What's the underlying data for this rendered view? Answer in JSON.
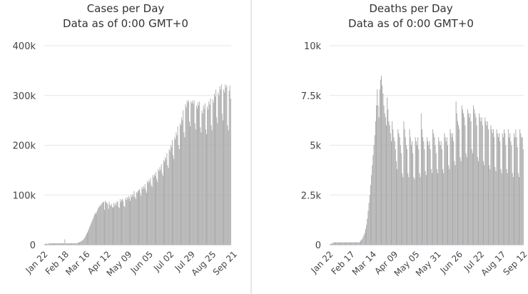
{
  "chart_data": [
    {
      "type": "bar",
      "title": "Cases per Day",
      "subtitle": "Data as of 0:00 GMT+0",
      "xlabel": "",
      "ylabel": "",
      "ylim": [
        0,
        400000
      ],
      "y_ticks": [
        0,
        100000,
        200000,
        300000,
        400000
      ],
      "y_tick_labels": [
        "0",
        "100k",
        "200k",
        "300k",
        "400k"
      ],
      "x_tick_labels": [
        "Jan 22",
        "Feb 18",
        "Mar 16",
        "Apr 12",
        "May 09",
        "Jun 05",
        "Jul 02",
        "Jul 29",
        "Aug 25",
        "Sep 21"
      ],
      "x_tick_index": [
        0,
        27,
        54,
        81,
        108,
        135,
        162,
        189,
        216,
        243
      ],
      "bar_color": "#a6a6a6",
      "n_days": 250,
      "start_date": "Jan 22",
      "values": [
        1000,
        2000,
        2000,
        2000,
        2000,
        2000,
        3000,
        3000,
        3000,
        3000,
        3000,
        3000,
        3000,
        3000,
        3000,
        3000,
        3000,
        3000,
        3000,
        3000,
        3000,
        3000,
        3000,
        3000,
        3000,
        3000,
        11000,
        3000,
        3000,
        3000,
        3000,
        3000,
        3000,
        3000,
        3000,
        3000,
        3000,
        3000,
        3000,
        3000,
        3000,
        3000,
        3000,
        4000,
        5000,
        5000,
        6000,
        7000,
        8000,
        9000,
        11000,
        13000,
        16000,
        19000,
        22000,
        25000,
        28000,
        32000,
        36000,
        40000,
        44000,
        48000,
        52000,
        56000,
        60000,
        64000,
        62000,
        66000,
        70000,
        74000,
        76000,
        80000,
        78000,
        82000,
        84000,
        86000,
        86000,
        70000,
        88000,
        86000,
        84000,
        82000,
        72000,
        86000,
        80000,
        78000,
        82000,
        76000,
        74000,
        84000,
        78000,
        84000,
        80000,
        88000,
        86000,
        76000,
        74000,
        92000,
        86000,
        90000,
        92000,
        88000,
        78000,
        76000,
        94000,
        90000,
        96000,
        92000,
        98000,
        94000,
        88000,
        100000,
        96000,
        102000,
        98000,
        108000,
        96000,
        92000,
        106000,
        104000,
        108000,
        110000,
        112000,
        104000,
        98000,
        116000,
        112000,
        118000,
        114000,
        122000,
        110000,
        104000,
        128000,
        124000,
        130000,
        126000,
        134000,
        120000,
        116000,
        140000,
        136000,
        142000,
        138000,
        146000,
        132000,
        126000,
        152000,
        148000,
        156000,
        150000,
        162000,
        144000,
        138000,
        170000,
        166000,
        176000,
        172000,
        184000,
        160000,
        154000,
        192000,
        188000,
        200000,
        196000,
        210000,
        180000,
        172000,
        216000,
        212000,
        226000,
        220000,
        238000,
        200000,
        192000,
        244000,
        240000,
        256000,
        250000,
        270000,
        226000,
        216000,
        282000,
        276000,
        290000,
        286000,
        290000,
        248000,
        238000,
        288000,
        284000,
        290000,
        284000,
        290000,
        244000,
        232000,
        280000,
        274000,
        286000,
        280000,
        288000,
        236000,
        226000,
        270000,
        264000,
        280000,
        274000,
        284000,
        232000,
        222000,
        278000,
        272000,
        288000,
        282000,
        294000,
        240000,
        230000,
        292000,
        286000,
        304000,
        298000,
        312000,
        256000,
        244000,
        306000,
        300000,
        318000,
        312000,
        322000,
        264000,
        250000,
        312000,
        306000,
        322000,
        316000,
        320000,
        240000,
        230000,
        310000,
        320000,
        294000
      ]
    },
    {
      "type": "bar",
      "title": "Deaths per Day",
      "subtitle": "Data as of 0:00 GMT+0",
      "xlabel": "",
      "ylabel": "",
      "ylim": [
        0,
        10000
      ],
      "y_ticks": [
        0,
        2500,
        5000,
        7500,
        10000
      ],
      "y_tick_labels": [
        "0",
        "2.5k",
        "5k",
        "7.5k",
        "10k"
      ],
      "x_tick_labels": [
        "Jan 22",
        "Feb 17",
        "Mar 14",
        "Apr 09",
        "May 05",
        "May 31",
        "Jun 26",
        "Jul 22",
        "Aug 17",
        "Sep 12"
      ],
      "x_tick_index": [
        0,
        26,
        52,
        78,
        104,
        130,
        156,
        182,
        208,
        234
      ],
      "bar_color": "#a6a6a6",
      "n_days": 250,
      "start_date": "Jan 22",
      "values": [
        20,
        40,
        60,
        80,
        100,
        120,
        120,
        120,
        120,
        120,
        120,
        120,
        120,
        120,
        120,
        120,
        120,
        120,
        120,
        120,
        120,
        120,
        120,
        120,
        120,
        120,
        120,
        120,
        120,
        120,
        120,
        120,
        120,
        120,
        120,
        120,
        150,
        200,
        250,
        300,
        400,
        500,
        600,
        800,
        1000,
        1300,
        1700,
        2100,
        2500,
        3000,
        3500,
        4000,
        4500,
        5000,
        5500,
        6200,
        7000,
        7800,
        7000,
        6400,
        7800,
        8300,
        8500,
        8000,
        7600,
        7000,
        6600,
        6400,
        6000,
        7400,
        6800,
        6200,
        6000,
        5600,
        5200,
        6200,
        5800,
        5400,
        5200,
        4800,
        4200,
        3800,
        5800,
        5600,
        5400,
        5000,
        4600,
        3600,
        3400,
        6200,
        5800,
        5400,
        5000,
        4800,
        3600,
        3400,
        5800,
        5400,
        5000,
        5200,
        4600,
        3400,
        3300,
        5400,
        5200,
        5000,
        5400,
        4800,
        3600,
        3400,
        6600,
        5800,
        5400,
        5200,
        4800,
        3700,
        3500,
        5400,
        5200,
        5000,
        5200,
        4800,
        3800,
        3600,
        5800,
        5600,
        5400,
        5000,
        4600,
        3800,
        3600,
        5400,
        5200,
        5000,
        5200,
        4800,
        3800,
        3600,
        5600,
        5400,
        5200,
        5400,
        5000,
        4000,
        3800,
        5800,
        5600,
        5400,
        5600,
        5200,
        4200,
        4000,
        7200,
        6600,
        6200,
        6000,
        5800,
        4400,
        4200,
        7000,
        6800,
        6600,
        6400,
        6000,
        4600,
        4400,
        6800,
        6600,
        6400,
        6600,
        6200,
        4800,
        4600,
        7000,
        6800,
        6600,
        6400,
        6000,
        4400,
        4200,
        6600,
        6400,
        6200,
        6400,
        6000,
        4200,
        4000,
        6400,
        6200,
        6000,
        6200,
        5800,
        4000,
        3800,
        6000,
        5800,
        5600,
        5800,
        5400,
        3900,
        3700,
        5800,
        5600,
        5400,
        5600,
        5200,
        3800,
        3600,
        5600,
        5400,
        5800,
        5600,
        5000,
        3800,
        3600,
        5800,
        5400,
        5600,
        5200,
        5000,
        3600,
        3400,
        5600,
        5400,
        5800,
        5400,
        4900,
        3600,
        3400,
        5800,
        5600,
        5400,
        5400,
        4800
      ]
    }
  ]
}
